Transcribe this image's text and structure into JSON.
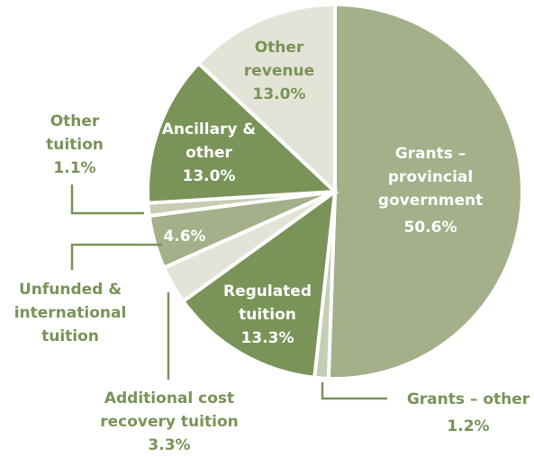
{
  "chart_data": {
    "type": "pie",
    "categories": [
      "Grants – provincial government",
      "Grants – other",
      "Regulated tuition",
      "Additional cost recovery tuition",
      "Unfunded & international tuition",
      "Other tuition",
      "Ancillary & other",
      "Other revenue"
    ],
    "values": [
      50.6,
      1.2,
      13.3,
      3.3,
      4.6,
      1.1,
      13.0,
      13.0
    ],
    "value_labels": [
      "50.6%",
      "1.2%",
      "13.3%",
      "3.3%",
      "4.6%",
      "1.1%",
      "13.0%",
      "13.0%"
    ],
    "colors": [
      "#a3b08a",
      "#c5cdb4",
      "#7a9358",
      "#e3e4d7",
      "#a3b08a",
      "#c5cdb4",
      "#7a9358",
      "#e3e4d7"
    ]
  }
}
